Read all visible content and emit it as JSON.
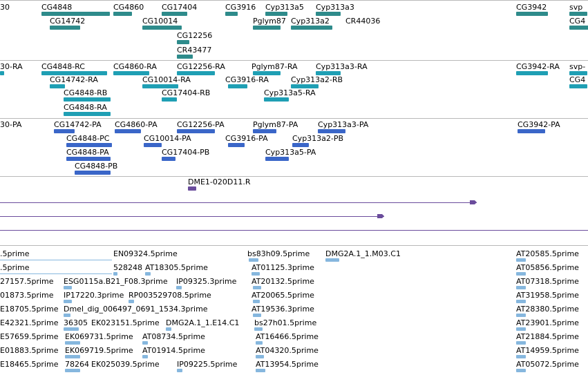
{
  "colors": {
    "gene": "#2e8b8b",
    "transcript": "#1f9fb4",
    "protein": "#3a66c8",
    "clone": "#6a4c9c",
    "est": "#86b7de",
    "divider": "#b8b8b8"
  },
  "tracks": {
    "genes": {
      "items": [
        {
          "label": "30"
        },
        {
          "label": "CG4848"
        },
        {
          "label": "CG4860"
        },
        {
          "label": "CG17404"
        },
        {
          "label": "CG3916"
        },
        {
          "label": "Cyp313a5"
        },
        {
          "label": "Cyp313a3"
        },
        {
          "label": "CG3942"
        },
        {
          "label": "svp"
        },
        {
          "label": "CG14742"
        },
        {
          "label": "CG10014"
        },
        {
          "label": "Pglym87"
        },
        {
          "label": "Cyp313a2"
        },
        {
          "label": "CR44036"
        },
        {
          "label": "CG4"
        },
        {
          "label": "CG12256"
        },
        {
          "label": "CR43477"
        }
      ]
    },
    "transcripts": {
      "items": [
        {
          "label": "30-RA"
        },
        {
          "label": "CG4848-RC"
        },
        {
          "label": "CG4860-RA"
        },
        {
          "label": "CG12256-RA"
        },
        {
          "label": "Pglym87-RA"
        },
        {
          "label": "Cyp313a3-RA"
        },
        {
          "label": "CG3942-RA"
        },
        {
          "label": "svp-"
        },
        {
          "label": "CG14742-RA"
        },
        {
          "label": "CG10014-RA"
        },
        {
          "label": "CG3916-RA"
        },
        {
          "label": "Cyp313a2-RB"
        },
        {
          "label": "CG4"
        },
        {
          "label": "CG4848-RB"
        },
        {
          "label": "CG17404-RB"
        },
        {
          "label": "Cyp313a5-RA"
        },
        {
          "label": "CG4848-RA"
        }
      ]
    },
    "proteins": {
      "items": [
        {
          "label": "30-PA"
        },
        {
          "label": "CG14742-PA"
        },
        {
          "label": "CG4860-PA"
        },
        {
          "label": "CG12256-PA"
        },
        {
          "label": "Pglym87-PA"
        },
        {
          "label": "Cyp313a3-PA"
        },
        {
          "label": "CG3942-PA"
        },
        {
          "label": "CG4848-PC"
        },
        {
          "label": "CG10014-PA"
        },
        {
          "label": "CG3916-PA"
        },
        {
          "label": "Cyp313a2-PB"
        },
        {
          "label": "CG4848-PA"
        },
        {
          "label": "CG17404-PB"
        },
        {
          "label": "Cyp313a5-PA"
        },
        {
          "label": "CG4848-PB"
        }
      ]
    },
    "clones": {
      "items": [
        {
          "label": "DME1-020D11.R"
        }
      ]
    },
    "ests": {
      "items": [
        {
          "label": ".5prime"
        },
        {
          "label": "EN09324.5prime"
        },
        {
          "label": "bs83h09.5prime"
        },
        {
          "label": "DMG2A.1_1.M03.C1"
        },
        {
          "label": "AT20585.5prime"
        },
        {
          "label": ".5prime"
        },
        {
          "label": "528248"
        },
        {
          "label": "AT18305.5prime"
        },
        {
          "label": "AT01125.3prime"
        },
        {
          "label": "AT05856.5prime"
        },
        {
          "label": "27157.5prime"
        },
        {
          "label": "ESG0115a.B21_F08.3prime"
        },
        {
          "label": "IP09325.3prime"
        },
        {
          "label": "AT20132.5prime"
        },
        {
          "label": "AT07318.5prime"
        },
        {
          "label": "01873.5prime"
        },
        {
          "label": "IP17220.3prime"
        },
        {
          "label": "RP003529708.5prime"
        },
        {
          "label": "AT20065.5prime"
        },
        {
          "label": "AT31958.5prime"
        },
        {
          "label": "E18705.5prime"
        },
        {
          "label": "Dmel_dig_006497_0691_1534.3prime"
        },
        {
          "label": "AT19536.3prime"
        },
        {
          "label": "AT28380.5prime"
        },
        {
          "label": "E42321.5prime"
        },
        {
          "label": "36305"
        },
        {
          "label": "EK023151.5prime"
        },
        {
          "label": "DMG2A.1_1.E14.C1"
        },
        {
          "label": "bs27h01.5prime"
        },
        {
          "label": "AT23901.5prime"
        },
        {
          "label": "E57659.5prime"
        },
        {
          "label": "EK069731.5prime"
        },
        {
          "label": "AT08734.5prime"
        },
        {
          "label": "AT16466.5prime"
        },
        {
          "label": "AT21884.5prime"
        },
        {
          "label": "E01883.5prime"
        },
        {
          "label": "EK069719.5prime"
        },
        {
          "label": "AT01914.5prime"
        },
        {
          "label": "AT04320.5prime"
        },
        {
          "label": "AT14959.5prime"
        },
        {
          "label": "E18465.5prime"
        },
        {
          "label": "78264"
        },
        {
          "label": "EK025039.5prime"
        },
        {
          "label": "IP09225.5prime"
        },
        {
          "label": "AT13954.5prime"
        },
        {
          "label": "AT05072.5prime"
        }
      ]
    }
  }
}
